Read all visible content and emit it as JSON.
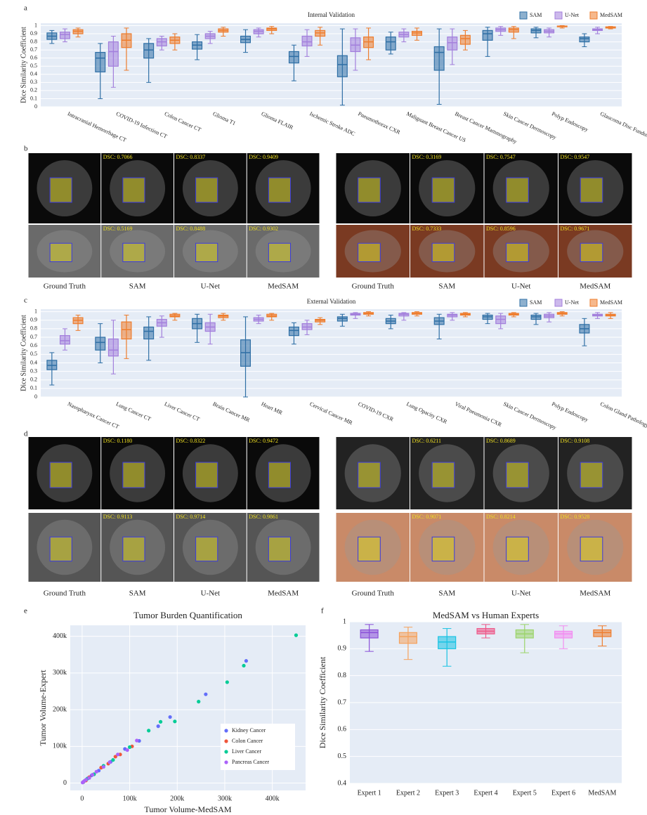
{
  "chart_data": [
    {
      "type": "box",
      "panel": "a",
      "title": "Internal Validation",
      "y_label": "Dice Similarity Coefficient",
      "categories": [
        "Intracranial Hemorrhage CT",
        "COVID-19 Infection CT",
        "Colon Cancer CT",
        "Glioma T1",
        "Glioma FLAIR",
        "Ischemic Stroke ADC",
        "Pneumothorax CXR",
        "Malignant Breast Cancer US",
        "Breast Cancer Mammography",
        "Skin Cancer Dermoscopy",
        "Polyp Endoscopy",
        "Glaucoma Disc Fundus"
      ],
      "ylim": [
        0,
        1.03
      ],
      "yticks": [
        0,
        0.1,
        0.2,
        0.3,
        0.4,
        0.5,
        0.6,
        0.7,
        0.8,
        0.9,
        1
      ],
      "grid": true,
      "series": [
        {
          "name": "SAM",
          "color": "#2f6fa5",
          "values": [
            [
              0.78,
              0.83,
              0.87,
              0.91,
              0.94
            ],
            [
              0.1,
              0.43,
              0.6,
              0.67,
              0.78
            ],
            [
              0.3,
              0.6,
              0.7,
              0.78,
              0.84
            ],
            [
              0.58,
              0.71,
              0.76,
              0.8,
              0.89
            ],
            [
              0.67,
              0.79,
              0.83,
              0.87,
              0.95
            ],
            [
              0.32,
              0.54,
              0.62,
              0.68,
              0.76
            ],
            [
              0.02,
              0.37,
              0.52,
              0.63,
              0.96
            ],
            [
              0.65,
              0.7,
              0.8,
              0.86,
              0.92
            ],
            [
              0.03,
              0.45,
              0.67,
              0.74,
              0.96
            ],
            [
              0.62,
              0.82,
              0.9,
              0.94,
              0.98
            ],
            [
              0.85,
              0.91,
              0.94,
              0.96,
              0.98
            ],
            [
              0.74,
              0.8,
              0.84,
              0.86,
              0.9
            ]
          ]
        },
        {
          "name": "U-Net",
          "color": "#a37fdc",
          "values": [
            [
              0.8,
              0.84,
              0.89,
              0.92,
              0.96
            ],
            [
              0.24,
              0.5,
              0.68,
              0.8,
              0.87
            ],
            [
              0.7,
              0.75,
              0.8,
              0.84,
              0.87
            ],
            [
              0.78,
              0.84,
              0.87,
              0.9,
              0.93
            ],
            [
              0.86,
              0.9,
              0.93,
              0.95,
              0.97
            ],
            [
              0.62,
              0.75,
              0.8,
              0.87,
              0.95
            ],
            [
              0.45,
              0.68,
              0.76,
              0.85,
              0.96
            ],
            [
              0.8,
              0.86,
              0.89,
              0.92,
              0.96
            ],
            [
              0.52,
              0.7,
              0.79,
              0.86,
              0.96
            ],
            [
              0.88,
              0.93,
              0.95,
              0.97,
              0.99
            ],
            [
              0.86,
              0.91,
              0.93,
              0.95,
              0.97
            ],
            [
              0.9,
              0.94,
              0.95,
              0.96,
              0.98
            ]
          ]
        },
        {
          "name": "MedSAM",
          "color": "#ee7d2e",
          "values": [
            [
              0.86,
              0.9,
              0.93,
              0.95,
              0.97
            ],
            [
              0.45,
              0.73,
              0.82,
              0.9,
              0.97
            ],
            [
              0.7,
              0.78,
              0.82,
              0.86,
              0.9
            ],
            [
              0.87,
              0.92,
              0.94,
              0.96,
              0.98
            ],
            [
              0.9,
              0.94,
              0.96,
              0.97,
              0.99
            ],
            [
              0.76,
              0.87,
              0.91,
              0.94,
              0.98
            ],
            [
              0.58,
              0.73,
              0.8,
              0.86,
              0.97
            ],
            [
              0.82,
              0.88,
              0.91,
              0.93,
              0.97
            ],
            [
              0.7,
              0.77,
              0.84,
              0.88,
              0.94
            ],
            [
              0.84,
              0.92,
              0.95,
              0.97,
              0.99
            ],
            [
              0.97,
              0.985,
              0.99,
              0.995,
              1.0
            ],
            [
              0.96,
              0.97,
              0.98,
              0.985,
              0.99
            ]
          ]
        }
      ]
    },
    {
      "type": "box",
      "panel": "c",
      "title": "External Validation",
      "y_label": "Dice Similarity Coefficient",
      "categories": [
        "Nasopharynx Cancer CT",
        "Lung Cancer CT",
        "Liver Cancer CT",
        "Brain Cancer MR",
        "Heart MR",
        "Cervical Cancer MR",
        "COVID-19 CXR",
        "Lung Opacity CXR",
        "Viral Pneumonia CXR",
        "Skin Cancer Dermoscopy",
        "Polyp Endoscopy",
        "Colon Gland Pathology"
      ],
      "ylim": [
        0,
        1.03
      ],
      "yticks": [
        0,
        0.1,
        0.2,
        0.3,
        0.4,
        0.5,
        0.6,
        0.7,
        0.8,
        0.9,
        1
      ],
      "grid": true,
      "series": [
        {
          "name": "SAM",
          "color": "#2f6fa5",
          "values": [
            [
              0.14,
              0.32,
              0.37,
              0.43,
              0.52
            ],
            [
              0.4,
              0.55,
              0.64,
              0.7,
              0.86
            ],
            [
              0.43,
              0.68,
              0.77,
              0.82,
              0.94
            ],
            [
              0.64,
              0.8,
              0.86,
              0.92,
              0.97
            ],
            [
              0.0,
              0.36,
              0.52,
              0.67,
              0.94
            ],
            [
              0.62,
              0.72,
              0.78,
              0.82,
              0.87
            ],
            [
              0.83,
              0.89,
              0.92,
              0.94,
              0.97
            ],
            [
              0.8,
              0.86,
              0.89,
              0.92,
              0.96
            ],
            [
              0.68,
              0.85,
              0.89,
              0.93,
              0.97
            ],
            [
              0.86,
              0.91,
              0.94,
              0.96,
              0.98
            ],
            [
              0.85,
              0.91,
              0.94,
              0.96,
              0.98
            ],
            [
              0.6,
              0.75,
              0.8,
              0.85,
              0.92
            ]
          ]
        },
        {
          "name": "U-Net",
          "color": "#a37fdc",
          "values": [
            [
              0.55,
              0.62,
              0.66,
              0.72,
              0.8
            ],
            [
              0.27,
              0.48,
              0.55,
              0.68,
              0.9
            ],
            [
              0.7,
              0.83,
              0.87,
              0.91,
              0.95
            ],
            [
              0.62,
              0.77,
              0.82,
              0.87,
              0.97
            ],
            [
              0.86,
              0.89,
              0.91,
              0.93,
              0.96
            ],
            [
              0.73,
              0.79,
              0.82,
              0.86,
              0.9
            ],
            [
              0.92,
              0.96,
              0.97,
              0.98,
              0.99
            ],
            [
              0.9,
              0.95,
              0.97,
              0.98,
              0.99
            ],
            [
              0.9,
              0.94,
              0.96,
              0.97,
              0.99
            ],
            [
              0.8,
              0.86,
              0.91,
              0.95,
              0.98
            ],
            [
              0.88,
              0.93,
              0.95,
              0.97,
              0.99
            ],
            [
              0.92,
              0.95,
              0.96,
              0.97,
              0.99
            ]
          ]
        },
        {
          "name": "MedSAM",
          "color": "#ee7d2e",
          "values": [
            [
              0.78,
              0.86,
              0.9,
              0.93,
              0.96
            ],
            [
              0.45,
              0.68,
              0.79,
              0.88,
              0.96
            ],
            [
              0.9,
              0.94,
              0.95,
              0.97,
              0.98
            ],
            [
              0.9,
              0.93,
              0.95,
              0.96,
              0.98
            ],
            [
              0.9,
              0.94,
              0.95,
              0.97,
              0.98
            ],
            [
              0.85,
              0.88,
              0.9,
              0.91,
              0.93
            ],
            [
              0.95,
              0.97,
              0.98,
              0.99,
              1.0
            ],
            [
              0.95,
              0.97,
              0.98,
              0.99,
              1.0
            ],
            [
              0.94,
              0.96,
              0.97,
              0.98,
              0.99
            ],
            [
              0.94,
              0.96,
              0.97,
              0.98,
              0.99
            ],
            [
              0.95,
              0.97,
              0.98,
              0.99,
              1.0
            ],
            [
              0.92,
              0.95,
              0.96,
              0.97,
              0.99
            ]
          ]
        }
      ]
    },
    {
      "type": "scatter",
      "panel": "e",
      "title": "Tumor Burden Quantification",
      "x_label": "Tumor Volume-MedSAM",
      "y_label": "Tumor Volume-Expert",
      "xlim": [
        -25000,
        470000
      ],
      "ylim": [
        -20000,
        430000
      ],
      "grid": true,
      "xticks": [
        0,
        {
          "value": 100000,
          "label": "100k"
        },
        {
          "value": 200000,
          "label": "200k"
        },
        {
          "value": 300000,
          "label": "300k"
        },
        {
          "value": 400000,
          "label": "400k"
        }
      ],
      "yticks": [
        0,
        {
          "value": 100000,
          "label": "100k"
        },
        {
          "value": 200000,
          "label": "200k"
        },
        {
          "value": 300000,
          "label": "300k"
        },
        {
          "value": 400000,
          "label": "400k"
        }
      ],
      "series": [
        {
          "name": "Kidney Cancer",
          "color": "#636efa",
          "x": [
            5000,
            12000,
            20000,
            35000,
            60000,
            90000,
            120000,
            160000,
            185000,
            260000,
            345000
          ],
          "y": [
            6000,
            13000,
            21000,
            34000,
            58000,
            93000,
            115000,
            155000,
            180000,
            242000,
            333000
          ]
        },
        {
          "name": "Colon Cancer",
          "color": "#ef553b",
          "x": [
            3000,
            8000,
            15000,
            25000,
            40000,
            55000,
            70000,
            80000,
            105000
          ],
          "y": [
            3500,
            7000,
            16000,
            24000,
            42000,
            53000,
            72000,
            78000,
            100000
          ]
        },
        {
          "name": "Liver Cancer",
          "color": "#00cc96",
          "x": [
            2000,
            10000,
            25000,
            45000,
            65000,
            100000,
            140000,
            165000,
            195000,
            245000,
            305000,
            340000,
            450000
          ],
          "y": [
            2500,
            11000,
            24000,
            47000,
            63000,
            98000,
            143000,
            167000,
            168000,
            222000,
            275000,
            320000,
            403000
          ]
        },
        {
          "name": "Pancreas Cancer",
          "color": "#ab63fa",
          "x": [
            1000,
            4000,
            8000,
            15000,
            22000,
            30000,
            45000,
            58000,
            75000,
            95000,
            115000
          ],
          "y": [
            1500,
            5000,
            9000,
            14000,
            23000,
            31000,
            44000,
            57000,
            78000,
            90000,
            116000
          ]
        }
      ]
    },
    {
      "type": "box",
      "panel": "f",
      "title": "MedSAM vs Human Experts",
      "y_label": "Dice Similarity Coefficient",
      "categories": [
        "Expert 1",
        "Expert 2",
        "Expert 3",
        "Expert 4",
        "Expert 5",
        "Expert 6",
        "MedSAM"
      ],
      "ylim": [
        0.4,
        1.0
      ],
      "yticks": [
        0.4,
        0.5,
        0.6,
        0.7,
        0.8,
        0.9,
        1
      ],
      "grid": true,
      "colors": [
        "#8a4fd8",
        "#f5a25d",
        "#19c3e3",
        "#ee5a8a",
        "#9bd46a",
        "#f28cf0",
        "#ee7d2e"
      ],
      "values": [
        [
          0.89,
          0.94,
          0.96,
          0.97,
          0.99
        ],
        [
          0.86,
          0.92,
          0.945,
          0.96,
          0.98
        ],
        [
          0.835,
          0.9,
          0.925,
          0.945,
          0.975
        ],
        [
          0.94,
          0.955,
          0.965,
          0.975,
          0.99
        ],
        [
          0.885,
          0.94,
          0.955,
          0.97,
          0.99
        ],
        [
          0.9,
          0.94,
          0.955,
          0.965,
          0.985
        ],
        [
          0.91,
          0.945,
          0.96,
          0.97,
          0.985
        ]
      ]
    }
  ],
  "image_panels": [
    {
      "panel": "b",
      "groups": [
        {
          "captions": [
            "Ground Truth",
            "SAM",
            "U-Net",
            "MedSAM"
          ],
          "rows": [
            [
              "DSC: 0.7066",
              "DSC: 0.8337",
              "DSC: 0.9409"
            ],
            [
              "DSC: 0.5169",
              "DSC: 0.8488",
              "DSC: 0.9302"
            ]
          ]
        },
        {
          "captions": [
            "Ground Truth",
            "SAM",
            "U-Net",
            "MedSAM"
          ],
          "rows": [
            [
              "DSC: 0.3169",
              "DSC: 0.7547",
              "DSC: 0.9547"
            ],
            [
              "DSC: 0.7333",
              "DSC: 0.8596",
              "DSC: 0.9671"
            ]
          ]
        }
      ]
    },
    {
      "panel": "d",
      "groups": [
        {
          "captions": [
            "Ground Truth",
            "SAM",
            "U-Net",
            "MedSAM"
          ],
          "rows": [
            [
              "DSC: 0.1180",
              "DSC: 0.8322",
              "DSC: 0.9472"
            ],
            [
              "DSC: 0.9113",
              "DSC: 0.9714",
              "DSC: 0.9861"
            ]
          ]
        },
        {
          "captions": [
            "Ground Truth",
            "SAM",
            "U-Net",
            "MedSAM"
          ],
          "rows": [
            [
              "DSC: 0.6211",
              "DSC: 0.8689",
              "DSC: 0.9108"
            ],
            [
              "DSC: 0.9071",
              "DSC: 0.8214",
              "DSC: 0.9528"
            ]
          ]
        }
      ]
    }
  ]
}
